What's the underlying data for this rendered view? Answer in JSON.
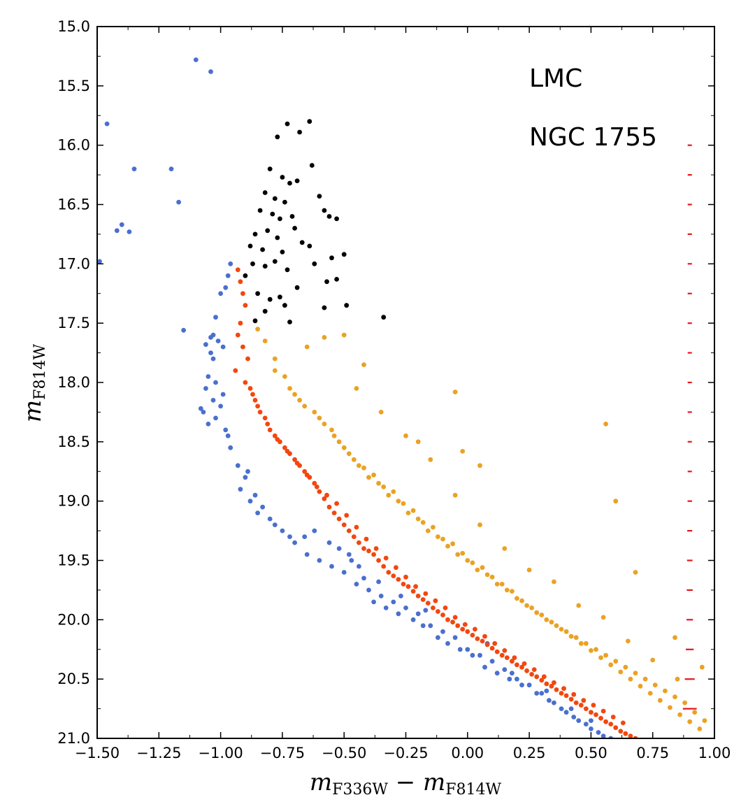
{
  "chart_data": {
    "type": "scatter",
    "title": "",
    "xlabel": {
      "main": "m",
      "sub1": "F336W",
      "minus": " − ",
      "main2": "m",
      "sub2": "F814W"
    },
    "ylabel": {
      "main": "m",
      "sub": "F814W"
    },
    "xlim": [
      -1.5,
      1.0
    ],
    "ylim": [
      21.0,
      15.0
    ],
    "y_inverted": true,
    "grid": false,
    "xticks": [
      "−1.50",
      "−1.25",
      "−1.00",
      "−0.75",
      "−0.50",
      "−0.25",
      "0.00",
      "0.25",
      "0.50",
      "0.75",
      "1.00"
    ],
    "xtick_values": [
      -1.5,
      -1.25,
      -1.0,
      -0.75,
      -0.5,
      -0.25,
      0.0,
      0.25,
      0.5,
      0.75,
      1.0
    ],
    "yticks": [
      "15.0",
      "15.5",
      "16.0",
      "16.5",
      "17.0",
      "17.5",
      "18.0",
      "18.5",
      "19.0",
      "19.5",
      "20.0",
      "20.5",
      "21.0"
    ],
    "ytick_values": [
      15.0,
      15.5,
      16.0,
      16.5,
      17.0,
      17.5,
      18.0,
      18.5,
      19.0,
      19.5,
      20.0,
      20.5,
      21.0
    ],
    "annotations": [
      "LMC",
      "NGC 1755"
    ],
    "colors": {
      "blue": "#4a6fce",
      "red": "#f2470f",
      "orange": "#eaa224",
      "black": "#000000",
      "errorbar": "#e8131b"
    },
    "series": [
      {
        "color": "blue",
        "x": [
          -1.1,
          -1.04,
          -1.46,
          -1.35,
          -1.2,
          -1.17,
          -1.42,
          -1.4,
          -1.37,
          -1.49,
          -1.15,
          -0.96,
          -0.97,
          -0.98,
          -1.0,
          -1.02,
          -1.03,
          -1.01,
          -0.99,
          -1.04,
          -1.05,
          -1.06,
          -1.03,
          -1.07,
          -1.02,
          -1.0,
          -0.98,
          -1.05,
          -1.08,
          -1.04,
          -1.03,
          -0.99,
          -0.97,
          -1.06,
          -1.02,
          -0.96,
          -0.93,
          -0.9,
          -0.92,
          -0.88,
          -0.85,
          -0.8,
          -0.75,
          -0.7,
          -0.66,
          -0.89,
          -0.86,
          -0.83,
          -0.78,
          -0.72,
          -0.65,
          -0.6,
          -0.55,
          -0.5,
          -0.45,
          -0.4,
          -0.38,
          -0.33,
          -0.28,
          -0.22,
          -0.18,
          -0.12,
          -0.08,
          -0.03,
          0.02,
          0.07,
          0.12,
          0.17,
          -0.52,
          -0.47,
          -0.42,
          -0.35,
          -0.3,
          -0.25,
          -0.2,
          -0.15,
          -0.1,
          -0.05,
          0.0,
          0.05,
          0.1,
          0.15,
          0.2,
          0.25,
          0.3,
          0.35,
          0.4,
          0.45,
          0.5,
          0.55,
          0.22,
          0.28,
          0.33,
          0.38,
          0.43,
          0.48,
          0.53,
          0.58,
          -0.62,
          -0.56,
          -0.48,
          -0.44,
          -0.36,
          -0.27,
          -0.17,
          0.08,
          0.18,
          0.32,
          0.42,
          0.5
        ],
        "y": [
          15.28,
          15.38,
          15.82,
          16.2,
          16.2,
          16.48,
          16.72,
          16.67,
          16.73,
          16.98,
          17.56,
          17.0,
          17.1,
          17.2,
          17.25,
          17.45,
          17.6,
          17.65,
          17.7,
          17.75,
          17.95,
          18.05,
          18.15,
          18.25,
          18.3,
          18.2,
          18.4,
          18.35,
          18.22,
          17.62,
          17.8,
          18.1,
          18.45,
          17.68,
          18.0,
          18.55,
          18.7,
          18.8,
          18.9,
          19.0,
          19.1,
          19.15,
          19.25,
          19.35,
          19.3,
          18.75,
          18.95,
          19.05,
          19.2,
          19.3,
          19.45,
          19.5,
          19.55,
          19.6,
          19.7,
          19.75,
          19.85,
          19.9,
          19.95,
          20.0,
          20.05,
          20.15,
          20.2,
          20.25,
          20.3,
          20.4,
          20.45,
          20.5,
          19.4,
          19.5,
          19.65,
          19.8,
          19.85,
          19.9,
          19.95,
          20.05,
          20.1,
          20.15,
          20.25,
          20.3,
          20.35,
          20.42,
          20.5,
          20.55,
          20.62,
          20.7,
          20.78,
          20.85,
          20.92,
          20.98,
          20.55,
          20.62,
          20.68,
          20.75,
          20.82,
          20.88,
          20.95,
          21.0,
          19.25,
          19.35,
          19.45,
          19.55,
          19.68,
          19.8,
          19.92,
          20.2,
          20.45,
          20.6,
          20.75,
          20.85
        ]
      },
      {
        "color": "red",
        "x": [
          -0.93,
          -0.92,
          -0.91,
          -0.9,
          -0.92,
          -0.93,
          -0.91,
          -0.89,
          -0.94,
          -0.9,
          -0.88,
          -0.87,
          -0.86,
          -0.84,
          -0.82,
          -0.8,
          -0.78,
          -0.76,
          -0.74,
          -0.72,
          -0.7,
          -0.68,
          -0.66,
          -0.64,
          -0.62,
          -0.6,
          -0.58,
          -0.56,
          -0.54,
          -0.52,
          -0.5,
          -0.48,
          -0.46,
          -0.44,
          -0.42,
          -0.4,
          -0.38,
          -0.36,
          -0.34,
          -0.32,
          -0.3,
          -0.28,
          -0.26,
          -0.24,
          -0.22,
          -0.2,
          -0.18,
          -0.16,
          -0.14,
          -0.12,
          -0.1,
          -0.08,
          -0.06,
          -0.04,
          -0.02,
          0.0,
          0.02,
          0.04,
          0.06,
          0.08,
          0.1,
          0.12,
          0.14,
          0.16,
          0.18,
          0.2,
          0.22,
          0.24,
          0.26,
          0.28,
          0.3,
          0.32,
          0.34,
          0.36,
          0.38,
          0.4,
          0.42,
          0.44,
          0.46,
          0.48,
          0.5,
          0.52,
          0.54,
          0.56,
          0.58,
          0.6,
          0.62,
          0.64,
          0.66,
          0.68,
          -0.85,
          -0.81,
          -0.77,
          -0.73,
          -0.69,
          -0.65,
          -0.61,
          -0.57,
          -0.53,
          -0.49,
          -0.45,
          -0.41,
          -0.37,
          -0.33,
          -0.29,
          -0.25,
          -0.21,
          -0.17,
          -0.13,
          -0.09,
          -0.05,
          -0.01,
          0.03,
          0.07,
          0.11,
          0.15,
          0.19,
          0.23,
          0.27,
          0.31,
          0.35,
          0.39,
          0.43,
          0.47,
          0.51,
          0.55,
          0.59,
          0.63
        ],
        "y": [
          17.05,
          17.15,
          17.25,
          17.35,
          17.5,
          17.6,
          17.7,
          17.8,
          17.9,
          18.0,
          18.05,
          18.1,
          18.15,
          18.25,
          18.3,
          18.4,
          18.45,
          18.5,
          18.55,
          18.6,
          18.65,
          18.7,
          18.75,
          18.8,
          18.85,
          18.92,
          18.98,
          19.05,
          19.1,
          19.15,
          19.2,
          19.25,
          19.3,
          19.35,
          19.4,
          19.42,
          19.45,
          19.5,
          19.55,
          19.6,
          19.63,
          19.66,
          19.7,
          19.72,
          19.76,
          19.8,
          19.83,
          19.86,
          19.9,
          19.93,
          19.96,
          20.0,
          20.02,
          20.05,
          20.08,
          20.1,
          20.13,
          20.16,
          20.18,
          20.21,
          20.24,
          20.27,
          20.3,
          20.32,
          20.35,
          20.38,
          20.4,
          20.43,
          20.46,
          20.48,
          20.51,
          20.54,
          20.56,
          20.59,
          20.62,
          20.64,
          20.67,
          20.7,
          20.72,
          20.75,
          20.78,
          20.8,
          20.83,
          20.86,
          20.88,
          20.91,
          20.94,
          20.96,
          20.98,
          21.0,
          18.2,
          18.35,
          18.48,
          18.58,
          18.68,
          18.78,
          18.88,
          18.95,
          19.02,
          19.12,
          19.22,
          19.32,
          19.4,
          19.48,
          19.56,
          19.64,
          19.72,
          19.78,
          19.84,
          19.9,
          19.98,
          20.04,
          20.08,
          20.14,
          20.2,
          20.26,
          20.32,
          20.37,
          20.42,
          20.48,
          20.53,
          20.58,
          20.63,
          20.68,
          20.72,
          20.77,
          20.82,
          20.87
        ]
      },
      {
        "color": "orange",
        "x": [
          -0.85,
          -0.82,
          -0.78,
          -0.74,
          -0.7,
          -0.66,
          -0.6,
          -0.55,
          -0.52,
          -0.48,
          -0.44,
          -0.4,
          -0.36,
          -0.32,
          -0.28,
          -0.24,
          -0.2,
          -0.16,
          -0.12,
          -0.08,
          -0.04,
          0.0,
          0.04,
          0.08,
          0.12,
          0.16,
          0.2,
          0.24,
          0.28,
          0.32,
          0.36,
          0.4,
          0.44,
          0.48,
          0.52,
          0.56,
          0.6,
          0.64,
          0.68,
          0.72,
          0.76,
          0.8,
          0.84,
          0.88,
          0.92,
          0.96,
          -0.78,
          -0.72,
          -0.68,
          -0.62,
          -0.58,
          -0.54,
          -0.5,
          -0.46,
          -0.42,
          -0.38,
          -0.34,
          -0.3,
          -0.26,
          -0.22,
          -0.18,
          -0.14,
          -0.1,
          -0.06,
          -0.02,
          0.02,
          0.06,
          0.1,
          0.14,
          0.18,
          0.22,
          0.26,
          0.3,
          0.34,
          0.38,
          0.42,
          0.46,
          0.5,
          0.54,
          0.58,
          0.62,
          0.66,
          0.7,
          0.74,
          0.78,
          0.82,
          0.86,
          0.9,
          0.94,
          -0.5,
          -0.42,
          -0.2,
          -0.05,
          -0.02,
          0.05,
          0.56,
          0.68,
          0.6,
          0.84,
          0.95,
          -0.65,
          -0.58,
          -0.45,
          -0.35,
          -0.25,
          -0.15,
          -0.05,
          0.05,
          0.15,
          0.25,
          0.35,
          0.45,
          0.55,
          0.65,
          0.75,
          0.85
        ],
        "y": [
          17.55,
          17.65,
          17.8,
          17.95,
          18.1,
          18.2,
          18.3,
          18.4,
          18.5,
          18.6,
          18.7,
          18.8,
          18.85,
          18.95,
          19.0,
          19.1,
          19.15,
          19.25,
          19.3,
          19.38,
          19.45,
          19.5,
          19.58,
          19.62,
          19.7,
          19.75,
          19.82,
          19.88,
          19.94,
          20.0,
          20.05,
          20.1,
          20.15,
          20.2,
          20.25,
          20.3,
          20.35,
          20.4,
          20.45,
          20.5,
          20.55,
          20.6,
          20.65,
          20.7,
          20.78,
          20.85,
          17.9,
          18.05,
          18.15,
          18.25,
          18.35,
          18.45,
          18.55,
          18.65,
          18.72,
          18.78,
          18.88,
          18.92,
          19.02,
          19.08,
          19.18,
          19.22,
          19.32,
          19.36,
          19.44,
          19.52,
          19.56,
          19.64,
          19.7,
          19.76,
          19.84,
          19.9,
          19.96,
          20.02,
          20.08,
          20.14,
          20.2,
          20.26,
          20.32,
          20.38,
          20.44,
          20.5,
          20.56,
          20.62,
          20.68,
          20.74,
          20.8,
          20.86,
          20.92,
          17.6,
          17.85,
          18.5,
          18.08,
          18.58,
          18.7,
          18.35,
          19.6,
          19.0,
          20.15,
          20.4,
          17.7,
          17.62,
          18.05,
          18.25,
          18.45,
          18.65,
          18.95,
          19.2,
          19.4,
          19.58,
          19.68,
          19.88,
          19.98,
          20.18,
          20.34,
          20.5
        ]
      },
      {
        "color": "black",
        "x": [
          -0.73,
          -0.64,
          -0.77,
          -0.68,
          -0.63,
          -0.8,
          -0.75,
          -0.72,
          -0.69,
          -0.6,
          -0.82,
          -0.78,
          -0.74,
          -0.58,
          -0.56,
          -0.84,
          -0.79,
          -0.76,
          -0.71,
          -0.53,
          -0.86,
          -0.81,
          -0.77,
          -0.7,
          -0.67,
          -0.88,
          -0.83,
          -0.75,
          -0.64,
          -0.55,
          -0.5,
          -0.87,
          -0.82,
          -0.78,
          -0.73,
          -0.62,
          -0.57,
          -0.85,
          -0.8,
          -0.76,
          -0.69,
          -0.53,
          -0.49,
          -0.82,
          -0.74,
          -0.58,
          -0.72,
          -0.34,
          -0.9,
          -0.86
        ],
        "y": [
          15.82,
          15.8,
          15.93,
          15.89,
          16.17,
          16.2,
          16.27,
          16.32,
          16.3,
          16.43,
          16.4,
          16.45,
          16.48,
          16.55,
          16.6,
          16.55,
          16.58,
          16.62,
          16.6,
          16.62,
          16.75,
          16.72,
          16.78,
          16.7,
          16.82,
          16.85,
          16.88,
          16.9,
          16.85,
          16.95,
          16.92,
          17.0,
          17.02,
          16.98,
          17.05,
          17.0,
          17.15,
          17.25,
          17.3,
          17.28,
          17.2,
          17.13,
          17.35,
          17.4,
          17.35,
          17.37,
          17.49,
          17.45,
          17.1,
          17.48
        ]
      }
    ],
    "errorbars": {
      "x": 0.9,
      "y": [
        16.0,
        16.25,
        16.5,
        16.75,
        17.0,
        17.25,
        17.5,
        17.75,
        18.0,
        18.25,
        18.5,
        18.75,
        19.0,
        19.25,
        19.5,
        19.75,
        20.0,
        20.25,
        20.5,
        20.75
      ],
      "xerr": [
        0.005,
        0.005,
        0.005,
        0.005,
        0.005,
        0.006,
        0.006,
        0.006,
        0.007,
        0.007,
        0.008,
        0.008,
        0.009,
        0.01,
        0.011,
        0.012,
        0.013,
        0.016,
        0.02,
        0.028
      ]
    }
  }
}
